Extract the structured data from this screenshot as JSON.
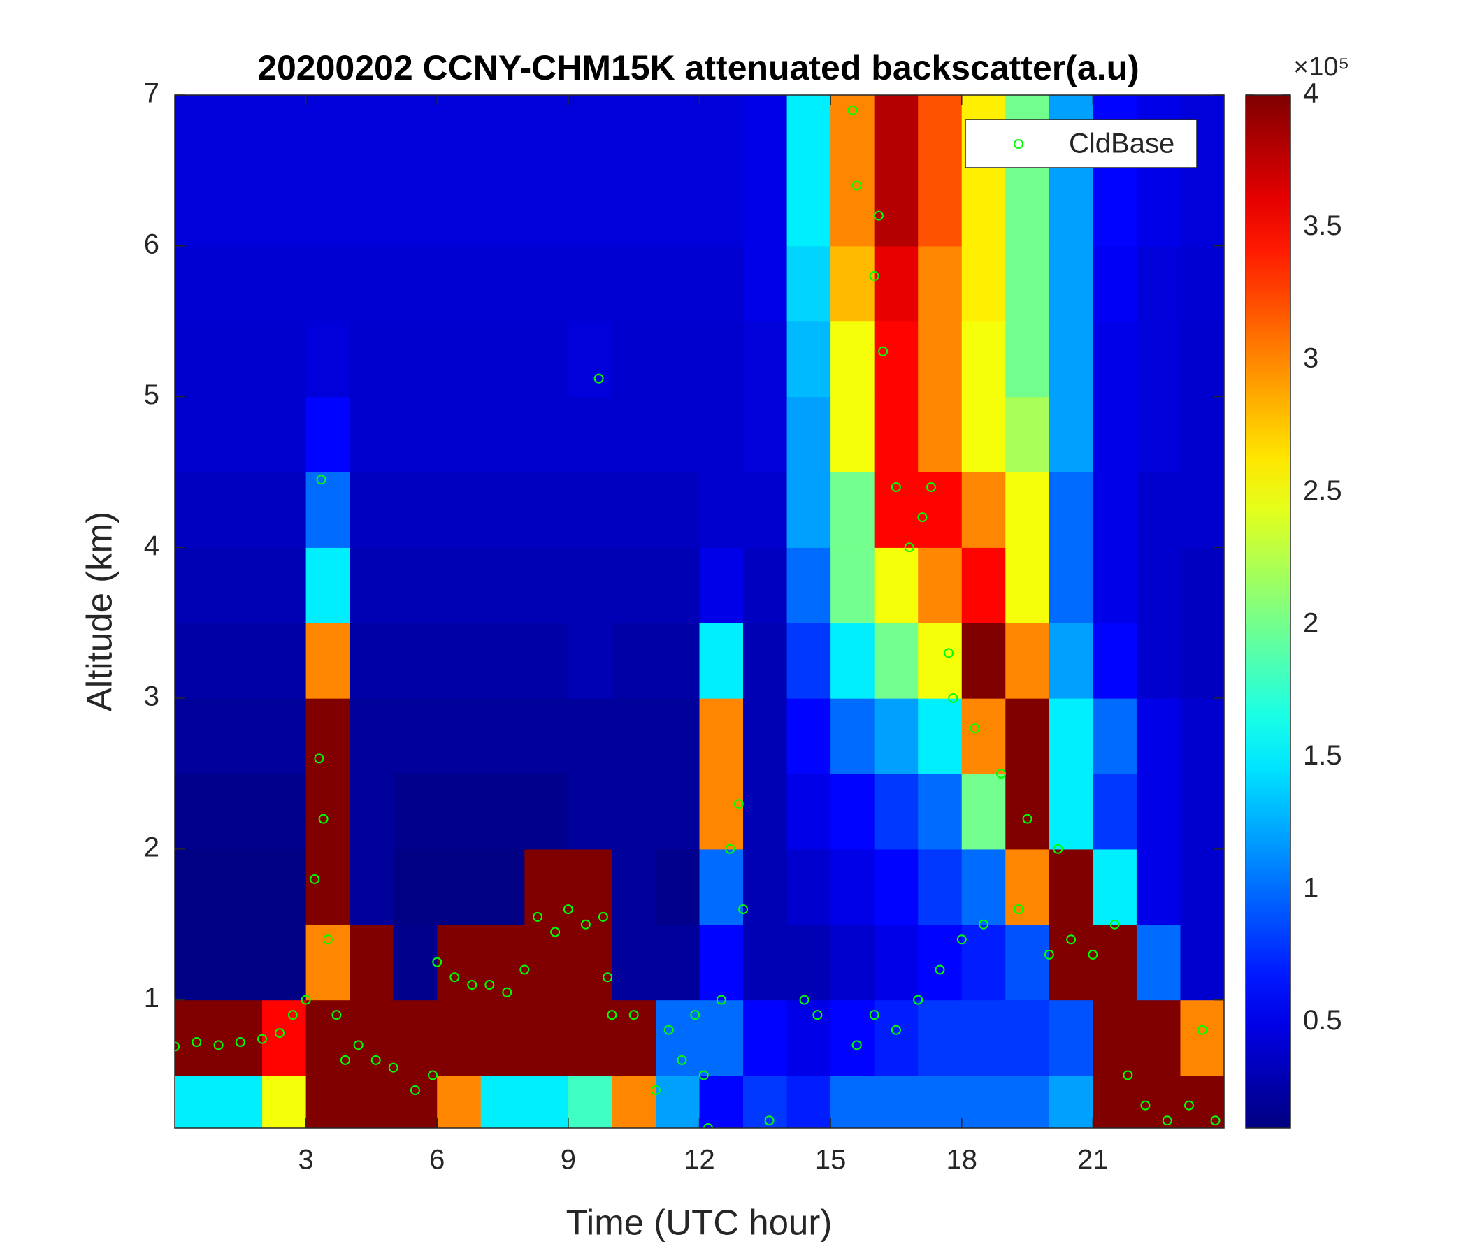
{
  "chart_data": {
    "type": "heatmap",
    "title": "20200202 CCNY-CHM15K attenuated backscatter(a.u)",
    "x_label": "Time (UTC hour)",
    "y_label": "Altitude (km)",
    "xlim": [
      0,
      24
    ],
    "ylim": [
      0.15,
      7
    ],
    "xticks": [
      3,
      6,
      9,
      12,
      15,
      18,
      21
    ],
    "yticks": [
      1,
      2,
      3,
      4,
      5,
      6,
      7
    ],
    "colormap": "jet",
    "clim": [
      0.1,
      4
    ],
    "colorbar_ticks": [
      0.5,
      1,
      1.5,
      2,
      2.5,
      3,
      3.5,
      4
    ],
    "colorbar_exponent": "×10⁵",
    "legend": "upper right",
    "heatmap": {
      "x_bins": [
        0,
        1,
        2,
        3,
        4,
        5,
        6,
        7,
        8,
        9,
        10,
        11,
        12,
        13,
        14,
        15,
        16,
        17,
        18,
        19,
        20,
        21,
        22,
        23,
        24
      ],
      "y_bins": [
        0.15,
        0.5,
        1,
        1.5,
        2,
        2.5,
        3,
        3.5,
        4,
        4.5,
        5,
        5.5,
        6,
        6.5,
        7
      ],
      "values": [
        [
          1.5,
          1.5,
          2.5,
          4,
          4,
          4,
          3,
          1.5,
          1.5,
          1.8,
          3,
          1.2,
          0.6,
          0.8,
          0.7,
          1.0,
          1.0,
          1.0,
          1.0,
          1.0,
          1.2,
          4,
          4,
          4
        ],
        [
          4,
          4,
          3.5,
          4,
          4,
          4,
          4,
          4,
          4,
          4,
          4,
          1,
          1,
          0.6,
          0.5,
          0.6,
          0.7,
          0.8,
          0.8,
          0.8,
          0.9,
          4,
          4,
          3
        ],
        [
          0.12,
          0.12,
          0.12,
          3,
          4,
          0.15,
          4,
          4,
          4,
          4,
          0.2,
          0.2,
          0.6,
          0.3,
          0.3,
          0.4,
          0.5,
          0.6,
          0.7,
          0.9,
          4,
          4,
          1,
          0.4
        ],
        [
          0.12,
          0.12,
          0.12,
          4,
          0.2,
          0.12,
          0.12,
          0.12,
          4,
          4,
          0.2,
          0.15,
          1,
          0.3,
          0.4,
          0.5,
          0.6,
          0.8,
          1,
          3,
          4,
          1.5,
          0.5,
          0.4
        ],
        [
          0.15,
          0.15,
          0.15,
          4,
          0.2,
          0.15,
          0.15,
          0.15,
          0.15,
          0.2,
          0.2,
          0.2,
          3,
          0.3,
          0.5,
          0.6,
          0.8,
          1,
          2,
          4,
          1.5,
          0.8,
          0.5,
          0.4
        ],
        [
          0.2,
          0.2,
          0.2,
          4,
          0.2,
          0.2,
          0.2,
          0.2,
          0.2,
          0.2,
          0.2,
          0.2,
          3,
          0.3,
          0.6,
          1,
          1.2,
          1.5,
          3,
          4,
          1.5,
          1,
          0.5,
          0.4
        ],
        [
          0.25,
          0.25,
          0.25,
          3,
          0.25,
          0.25,
          0.25,
          0.25,
          0.25,
          0.3,
          0.25,
          0.25,
          1.5,
          0.3,
          0.8,
          1.5,
          2,
          2.5,
          4,
          3,
          1.2,
          0.6,
          0.4,
          0.35
        ],
        [
          0.3,
          0.3,
          0.3,
          1.5,
          0.3,
          0.3,
          0.3,
          0.3,
          0.3,
          0.3,
          0.3,
          0.3,
          0.5,
          0.35,
          1,
          2,
          2.5,
          3,
          3.5,
          2.5,
          1,
          0.5,
          0.4,
          0.35
        ],
        [
          0.35,
          0.35,
          0.35,
          1,
          0.35,
          0.35,
          0.35,
          0.35,
          0.35,
          0.35,
          0.35,
          0.35,
          0.4,
          0.4,
          1.2,
          2,
          3.5,
          3.5,
          3,
          2.5,
          1,
          0.5,
          0.4,
          0.4
        ],
        [
          0.4,
          0.4,
          0.4,
          0.6,
          0.4,
          0.4,
          0.4,
          0.4,
          0.4,
          0.4,
          0.4,
          0.4,
          0.4,
          0.45,
          1.2,
          2.5,
          3.5,
          3,
          2.5,
          2.2,
          1.2,
          0.5,
          0.45,
          0.4
        ],
        [
          0.4,
          0.4,
          0.4,
          0.45,
          0.4,
          0.4,
          0.4,
          0.4,
          0.4,
          0.45,
          0.4,
          0.4,
          0.4,
          0.45,
          1.3,
          2.5,
          3.5,
          3,
          2.5,
          2,
          1.2,
          0.5,
          0.45,
          0.4
        ],
        [
          0.42,
          0.42,
          0.42,
          0.42,
          0.42,
          0.42,
          0.42,
          0.42,
          0.42,
          0.42,
          0.42,
          0.42,
          0.42,
          0.5,
          1.4,
          2.8,
          3.6,
          3,
          2.6,
          2,
          1.2,
          0.55,
          0.45,
          0.42
        ],
        [
          0.45,
          0.45,
          0.45,
          0.45,
          0.45,
          0.45,
          0.45,
          0.45,
          0.45,
          0.45,
          0.45,
          0.45,
          0.45,
          0.5,
          1.5,
          3,
          3.8,
          3.2,
          2.6,
          2,
          1.2,
          0.6,
          0.5,
          0.45
        ],
        [
          0.45,
          0.45,
          0.45,
          0.45,
          0.45,
          0.45,
          0.45,
          0.45,
          0.45,
          0.45,
          0.45,
          0.45,
          0.45,
          0.5,
          1.5,
          3,
          3.8,
          3.2,
          2.6,
          2,
          1.2,
          0.6,
          0.5,
          0.45
        ]
      ]
    },
    "series": [
      {
        "name": "CldBase",
        "color": "#00ff00",
        "x": [
          0.0,
          0.5,
          1.0,
          1.5,
          2.0,
          2.4,
          2.7,
          3.0,
          3.2,
          3.3,
          3.35,
          3.4,
          3.5,
          3.7,
          3.9,
          4.2,
          4.6,
          5.0,
          5.5,
          5.9,
          6.0,
          6.4,
          6.8,
          7.2,
          7.6,
          8.0,
          8.3,
          8.7,
          9.0,
          9.4,
          9.7,
          9.8,
          9.9,
          10.0,
          10.5,
          11.0,
          11.3,
          11.6,
          11.9,
          12.1,
          12.2,
          12.5,
          12.7,
          12.9,
          13.0,
          13.6,
          14.4,
          14.7,
          15.5,
          15.6,
          16.1,
          16.0,
          16.2,
          16.5,
          16.8,
          17.1,
          17.3,
          15.6,
          16.0,
          16.5,
          17.0,
          17.5,
          18.0,
          17.8,
          17.7,
          18.3,
          18.5,
          18.9,
          19.3,
          19.5,
          20.0,
          20.2,
          20.5,
          21.0,
          21.5,
          21.8,
          22.2,
          22.7,
          23.2,
          23.5,
          23.8
        ],
        "y": [
          0.69,
          0.72,
          0.7,
          0.72,
          0.74,
          0.78,
          0.9,
          1.0,
          1.8,
          2.6,
          4.45,
          2.2,
          1.4,
          0.9,
          0.6,
          0.7,
          0.6,
          0.55,
          0.4,
          0.5,
          1.25,
          1.15,
          1.1,
          1.1,
          1.05,
          1.2,
          1.55,
          1.45,
          1.6,
          1.5,
          5.12,
          1.55,
          1.15,
          0.9,
          0.9,
          0.4,
          0.8,
          0.6,
          0.9,
          0.5,
          0.15,
          1.0,
          2.0,
          2.3,
          1.6,
          0.2,
          1.0,
          0.9,
          6.9,
          6.4,
          6.2,
          5.8,
          5.3,
          4.4,
          4.0,
          4.2,
          4.4,
          0.7,
          0.9,
          0.8,
          1.0,
          1.2,
          1.4,
          3.0,
          3.3,
          2.8,
          1.5,
          2.5,
          1.6,
          2.2,
          1.3,
          2.0,
          1.4,
          1.3,
          1.5,
          0.5,
          0.3,
          0.2,
          0.3,
          0.8,
          0.2
        ]
      }
    ]
  }
}
